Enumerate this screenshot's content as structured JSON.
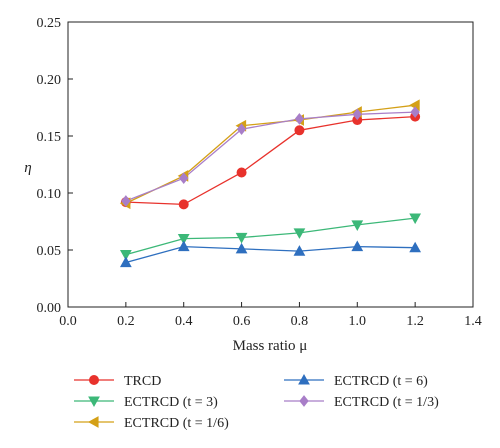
{
  "chart_data": {
    "type": "line",
    "xlabel": "Mass ratio μ",
    "ylabel": "η",
    "xlim": [
      0.0,
      1.4
    ],
    "ylim": [
      0.0,
      0.25
    ],
    "xticks": [
      "0.0",
      "0.2",
      "0.4",
      "0.6",
      "0.8",
      "1.0",
      "1.2",
      "1.4"
    ],
    "yticks": [
      "0.00",
      "0.05",
      "0.10",
      "0.15",
      "0.20",
      "0.25"
    ],
    "grid": false,
    "legend_position": "bottom",
    "x": [
      0.2,
      0.4,
      0.6,
      0.8,
      1.0,
      1.2
    ],
    "series": [
      {
        "name": "TRCD",
        "color": "#e8322c",
        "marker": "circle",
        "values": [
          0.092,
          0.09,
          0.118,
          0.155,
          0.164,
          0.167
        ]
      },
      {
        "name": "ECTRCD (t = 3)",
        "color": "#3cb878",
        "marker": "triangle-down",
        "values": [
          0.046,
          0.06,
          0.061,
          0.065,
          0.072,
          0.078
        ]
      },
      {
        "name": "ECTRCD (t = 1/6)",
        "color": "#d4a017",
        "marker": "triangle-left",
        "values": [
          0.091,
          0.115,
          0.159,
          0.164,
          0.171,
          0.177
        ]
      },
      {
        "name": "ECTRCD (t = 6)",
        "color": "#2e6fbf",
        "marker": "triangle-up",
        "values": [
          0.039,
          0.053,
          0.051,
          0.049,
          0.053,
          0.052
        ]
      },
      {
        "name": "ECTRCD (t = 1/3)",
        "color": "#a87ec8",
        "marker": "diamond",
        "values": [
          0.093,
          0.113,
          0.156,
          0.165,
          0.169,
          0.171
        ]
      }
    ]
  }
}
